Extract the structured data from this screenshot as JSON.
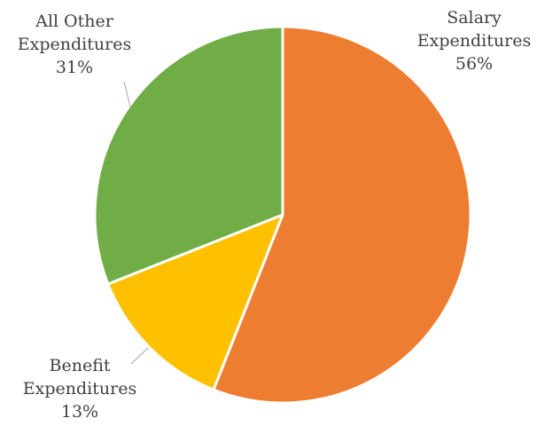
{
  "chart_data": {
    "type": "pie",
    "title": "",
    "slices": [
      {
        "name": "Salary Expenditures",
        "label_lines": [
          "Salary",
          "Expenditures"
        ],
        "value": 56,
        "value_label": "56%",
        "color": "#ed7d31"
      },
      {
        "name": "Benefit Expenditures",
        "label_lines": [
          "Benefit",
          "Expenditures"
        ],
        "value": 13,
        "value_label": "13%",
        "color": "#ffc000"
      },
      {
        "name": "All Other Expenditures",
        "label_lines": [
          "All Other",
          "Expenditures"
        ],
        "value": 31,
        "value_label": "31%",
        "color": "#70ad47"
      }
    ],
    "start": "12 o'clock",
    "direction": "clockwise",
    "slice_border_color": "#ffffff",
    "legend": "none"
  }
}
